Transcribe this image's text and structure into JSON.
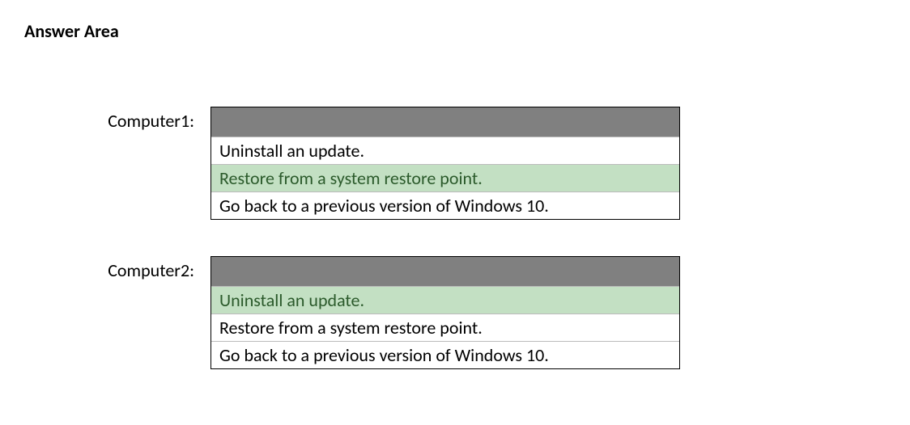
{
  "heading": "Answer Area",
  "colors": {
    "header_bg": "#808080",
    "highlight_bg": "#c3e0c3",
    "highlight_text": "#2b5a2b",
    "text": "#000000",
    "white": "#ffffff",
    "row_border": "#bbbbbb"
  },
  "questions": [
    {
      "label": "Computer1:",
      "options": [
        {
          "text": "Uninstall an update.",
          "highlighted": false
        },
        {
          "text": "Restore from a system restore point.",
          "highlighted": true
        },
        {
          "text": "Go back to a previous version of Windows 10.",
          "highlighted": false
        }
      ]
    },
    {
      "label": "Computer2:",
      "options": [
        {
          "text": "Uninstall an update.",
          "highlighted": true
        },
        {
          "text": "Restore from a system restore point.",
          "highlighted": false
        },
        {
          "text": "Go back to a previous version of Windows 10.",
          "highlighted": false
        }
      ]
    }
  ]
}
